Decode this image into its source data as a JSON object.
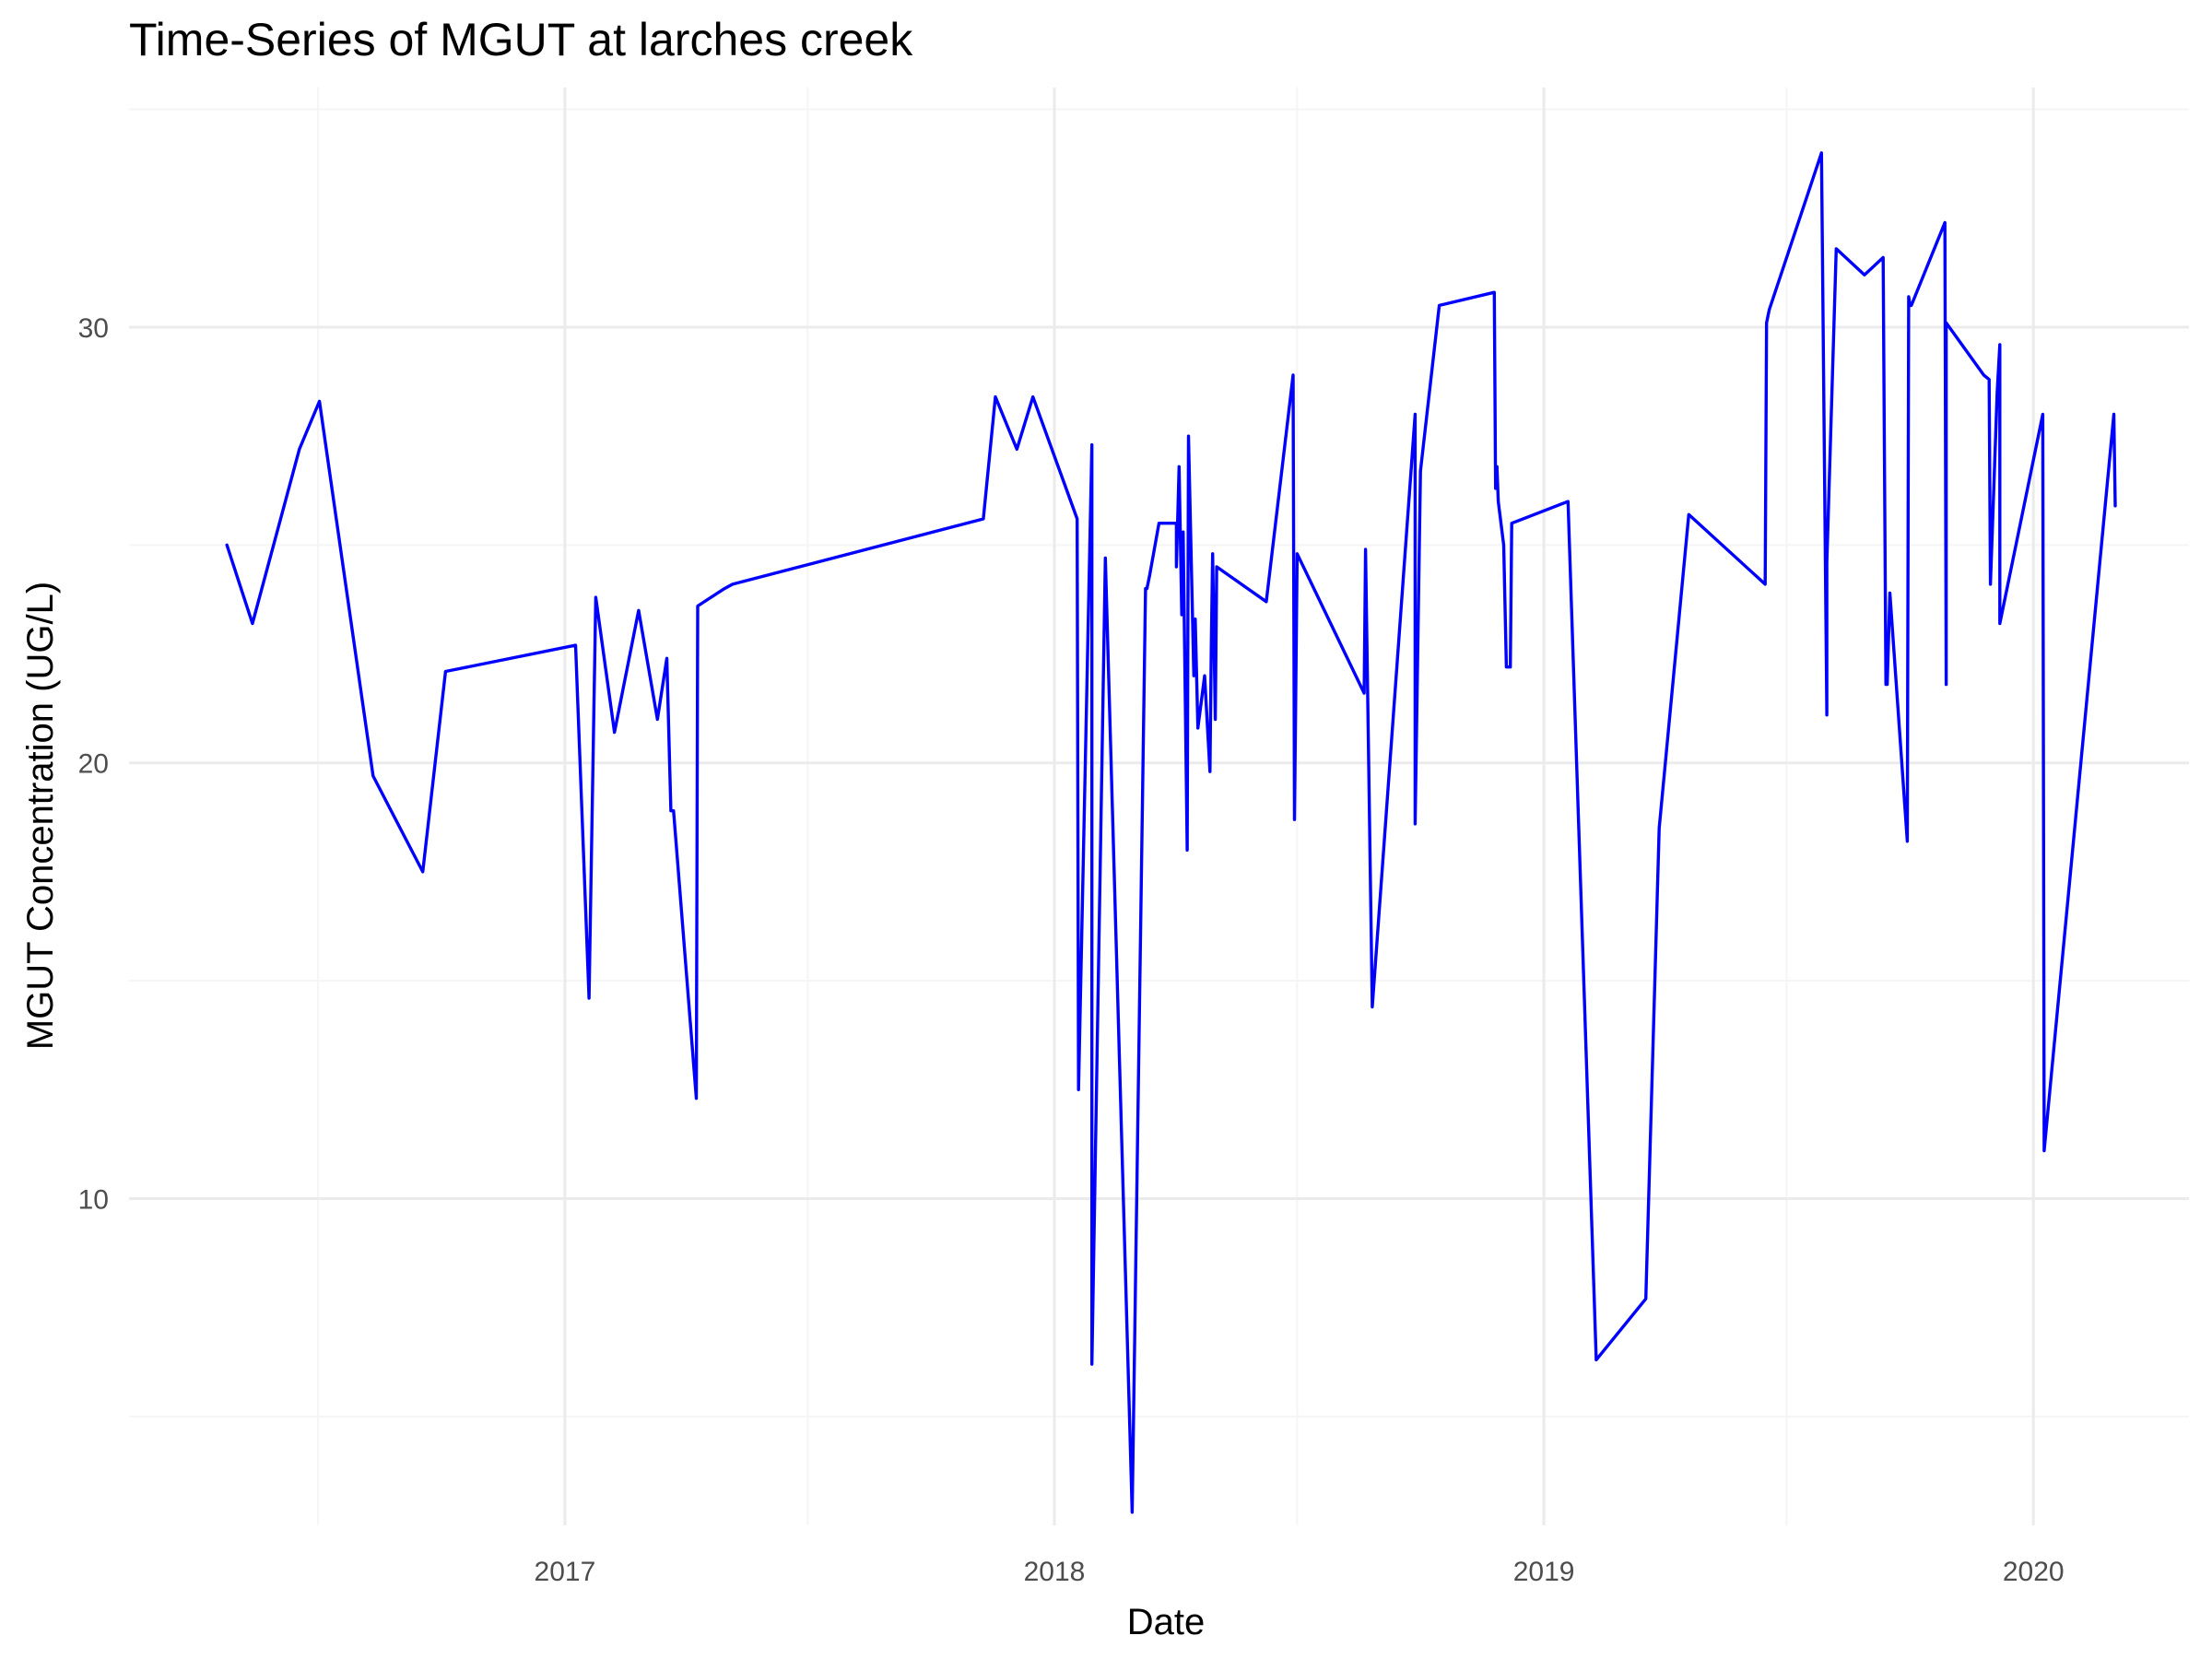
{
  "chart_data": {
    "type": "line",
    "title": "Time-Series of MGUT at larches creek",
    "xlabel": "Date",
    "ylabel": "MGUT Concentration (UG/L)",
    "x_ticks": [
      "2017",
      "2018",
      "2019",
      "2020"
    ],
    "y_ticks": [
      10,
      20,
      30
    ],
    "xlim": [
      "2016-02-11",
      "2020-04-26"
    ],
    "ylim": [
      2.5,
      35.5
    ],
    "grid": true,
    "legend": "none",
    "colors": {
      "line": "#0000ff",
      "grid_major": "#ebebeb",
      "grid_minor": "#f5f5f5"
    },
    "series": [
      {
        "x": [
          "2016-04-24",
          "2016-05-13",
          "2016-06-17",
          "2016-07-02",
          "2016-08-11",
          "2016-09-17",
          "2016-10-04",
          "2017-01-09",
          "2017-01-19",
          "2017-01-24",
          "2017-02-07",
          "2017-02-25",
          "2017-03-11",
          "2017-03-18",
          "2017-03-21",
          "2017-03-23",
          "2017-04-09",
          "2017-04-10",
          "2017-04-30",
          "2017-05-06",
          "2017-11-09",
          "2017-11-18",
          "2017-12-04",
          "2017-12-16",
          "2018-01-18",
          "2018-01-19",
          "2018-01-29",
          "2018-01-29",
          "2018-02-08",
          "2018-02-28",
          "2018-03-10",
          "2018-03-11",
          "2018-03-13",
          "2018-03-20",
          "2018-04-02",
          "2018-04-02",
          "2018-04-04",
          "2018-04-06",
          "2018-04-07",
          "2018-04-10",
          "2018-04-11",
          "2018-04-15",
          "2018-04-16",
          "2018-04-18",
          "2018-04-23",
          "2018-04-27",
          "2018-04-28",
          "2018-04-29",
          "2018-05-01",
          "2018-05-02",
          "2018-06-08",
          "2018-06-28",
          "2018-06-29",
          "2018-07-01",
          "2018-08-20",
          "2018-08-21",
          "2018-08-26",
          "2018-09-27",
          "2018-09-27",
          "2018-10-01",
          "2018-10-15",
          "2018-11-25",
          "2018-11-26",
          "2018-11-27",
          "2018-11-28",
          "2018-12-02",
          "2018-12-04",
          "2018-12-07",
          "2018-12-08",
          "2019-01-19",
          "2019-02-09",
          "2019-03-18",
          "2019-03-28",
          "2019-04-19",
          "2019-06-15",
          "2019-06-16",
          "2019-06-18",
          "2019-07-27",
          "2019-07-31",
          "2019-07-31",
          "2019-08-07",
          "2019-08-28",
          "2019-09-11",
          "2019-09-13",
          "2019-09-14",
          "2019-09-16",
          "2019-09-29",
          "2019-09-30",
          "2019-10-01",
          "2019-10-02",
          "2019-10-27",
          "2019-10-28",
          "2019-10-28",
          "2019-11-25",
          "2019-11-29",
          "2019-11-30",
          "2019-12-05",
          "2019-12-07",
          "2019-12-07",
          "2020-01-08",
          "2020-01-09",
          "2020-03-01",
          "2020-03-02"
        ],
        "y": [
          25.0,
          23.2,
          27.2,
          28.3,
          19.7,
          17.5,
          22.1,
          22.7,
          14.6,
          23.8,
          20.7,
          23.5,
          21.0,
          22.4,
          18.9,
          18.9,
          12.3,
          23.6,
          24.0,
          24.1,
          25.6,
          28.4,
          27.2,
          28.4,
          25.6,
          12.5,
          27.3,
          6.2,
          24.7,
          2.8,
          24.0,
          24.0,
          24.3,
          25.5,
          25.5,
          24.5,
          26.8,
          23.4,
          25.3,
          18.0,
          27.5,
          22.0,
          23.3,
          20.8,
          22.0,
          19.8,
          22.6,
          24.8,
          21.0,
          24.5,
          23.7,
          28.9,
          18.7,
          24.8,
          21.6,
          24.9,
          14.4,
          28.0,
          18.6,
          26.7,
          30.5,
          30.8,
          26.3,
          26.8,
          26.0,
          25.0,
          22.2,
          22.2,
          25.5,
          26.0,
          6.3,
          7.7,
          18.5,
          25.7,
          24.1,
          30.1,
          30.4,
          34.0,
          21.1,
          24.6,
          31.8,
          31.2,
          31.6,
          21.8,
          21.8,
          23.9,
          18.2,
          30.7,
          30.5,
          30.5,
          32.4,
          21.8,
          30.1,
          28.9,
          28.8,
          24.1,
          28.5,
          29.6,
          23.2,
          28.0,
          11.1,
          28.0,
          25.9
        ]
      }
    ]
  }
}
